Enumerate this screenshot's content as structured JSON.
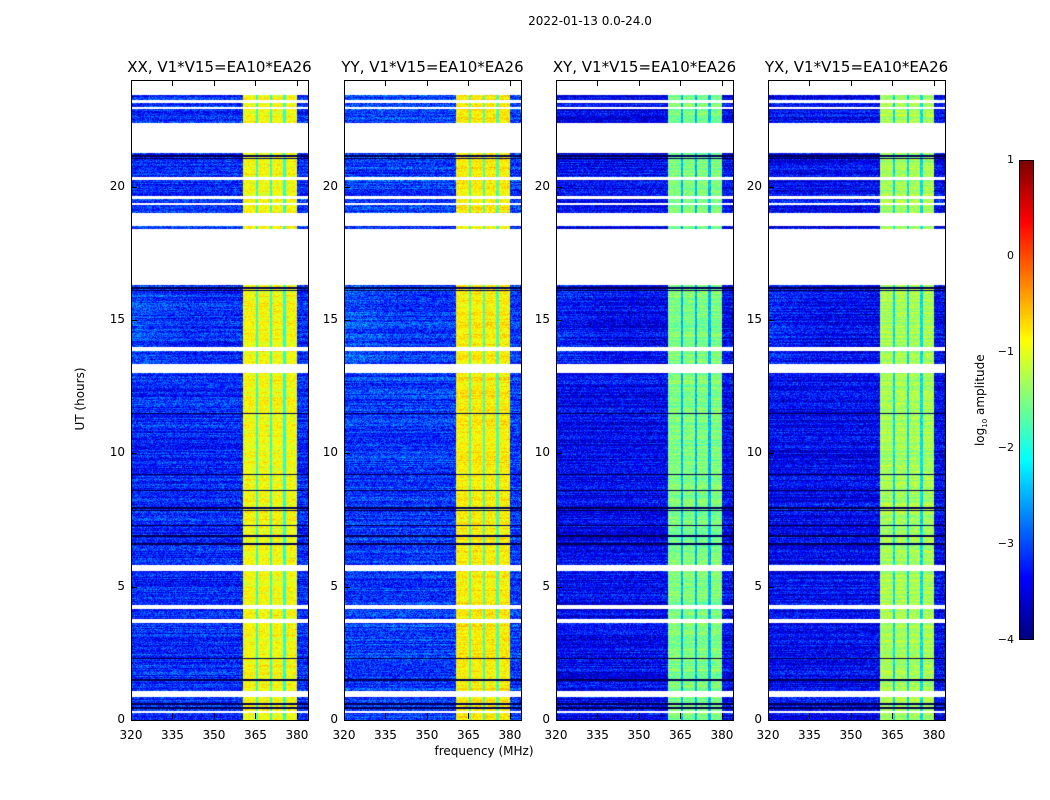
{
  "suptitle": "2022-01-13 0.0-24.0",
  "chart_data": {
    "type": "heatmap",
    "title": "2022-01-13 0.0-24.0",
    "xlabel": "frequency (MHz)",
    "ylabel": "UT (hours)",
    "xlim": [
      320,
      384
    ],
    "ylim": [
      0,
      24
    ],
    "xticks": [
      "320",
      "335",
      "350",
      "365",
      "380"
    ],
    "xtick_values": [
      320,
      335,
      350,
      365,
      380
    ],
    "yticks": [
      "0",
      "5",
      "10",
      "15",
      "20"
    ],
    "ytick_values": [
      0,
      5,
      10,
      15,
      20
    ],
    "panels": [
      {
        "title": "XX, V1*V15=EA10*EA26",
        "background_log_amp": -3.2,
        "band_log_amp": -0.9
      },
      {
        "title": "YY, V1*V15=EA10*EA26",
        "background_log_amp": -3.1,
        "band_log_amp": -0.8
      },
      {
        "title": "XY, V1*V15=EA10*EA26",
        "background_log_amp": -3.4,
        "band_log_amp": -1.5
      },
      {
        "title": "YX, V1*V15=EA10*EA26",
        "background_log_amp": -3.4,
        "band_log_amp": -1.3
      }
    ],
    "rfi_band_mhz": [
      360.5,
      380
    ],
    "band_gaps_mhz": [
      365.5,
      370.5,
      375.5
    ],
    "flagged_hours": [
      [
        23.45,
        24
      ],
      [
        23.15,
        23.25
      ],
      [
        22.9,
        22.98
      ],
      [
        21.25,
        22.4
      ],
      [
        20.25,
        20.35
      ],
      [
        19.55,
        19.65
      ],
      [
        19.3,
        19.38
      ],
      [
        18.52,
        19.0
      ],
      [
        16.3,
        18.4
      ],
      [
        13.85,
        14.0
      ],
      [
        13.0,
        13.35
      ],
      [
        5.6,
        5.8
      ],
      [
        4.15,
        4.3
      ],
      [
        3.65,
        3.78
      ],
      [
        0.85,
        1.1
      ],
      [
        0.28,
        0.35
      ]
    ],
    "dark_hours": [
      21.15,
      21.05,
      16.2,
      16.1,
      11.5,
      9.2,
      8.6,
      7.95,
      7.85,
      7.3,
      6.9,
      6.6,
      2.3,
      1.5,
      0.6,
      0.45
    ],
    "colorbar": {
      "label_prefix": "log",
      "label_sub": "10",
      "label_suffix": " amplitude",
      "range": [
        -4,
        1
      ],
      "ticks": [
        "1",
        "0",
        "−1",
        "−2",
        "−3",
        "−4"
      ],
      "tick_values": [
        1,
        0,
        -1,
        -2,
        -3,
        -4
      ],
      "colormap": "jet"
    }
  }
}
